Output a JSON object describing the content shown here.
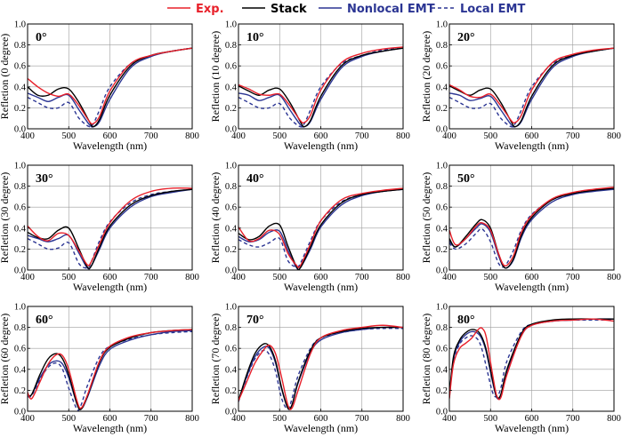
{
  "legend": [
    {
      "name": "Exp.",
      "color": "#e8202a",
      "dash": false
    },
    {
      "name": "Stack",
      "color": "#000000",
      "dash": false
    },
    {
      "name": "Nonlocal EMT",
      "color": "#2b3593",
      "dash": false
    },
    {
      "name": "Local EMT",
      "color": "#2b3593",
      "dash": true
    }
  ],
  "chart_data": {
    "type": "line",
    "xlabel": "Wavelength (nm)",
    "xlim": [
      400,
      800
    ],
    "ylim": [
      0,
      1.0
    ],
    "xticks": [
      "400",
      "500",
      "600",
      "700",
      "800"
    ],
    "yticks": [
      "0.0",
      "0.2",
      "0.4",
      "0.6",
      "0.8",
      "1.0"
    ],
    "grid": true,
    "panels": [
      {
        "angle": "0°",
        "ylabel": "Refletion (0 degree)",
        "x": [
          400,
          425,
          450,
          475,
          500,
          525,
          550,
          560,
          575,
          600,
          650,
          700,
          750,
          800
        ],
        "series": [
          {
            "name": "Exp.",
            "values": [
              0.48,
              0.4,
              0.34,
              0.31,
              0.33,
              0.22,
              0.07,
              0.05,
              0.12,
              0.36,
              0.62,
              0.7,
              0.74,
              0.77
            ]
          },
          {
            "name": "Stack",
            "values": [
              0.4,
              0.32,
              0.32,
              0.38,
              0.38,
              0.25,
              0.07,
              0.02,
              0.09,
              0.32,
              0.6,
              0.7,
              0.74,
              0.77
            ]
          },
          {
            "name": "Nonlocal EMT",
            "values": [
              0.34,
              0.3,
              0.26,
              0.3,
              0.32,
              0.18,
              0.04,
              0.02,
              0.07,
              0.28,
              0.58,
              0.69,
              0.74,
              0.77
            ]
          },
          {
            "name": "Local EMT",
            "values": [
              0.3,
              0.25,
              0.2,
              0.2,
              0.25,
              0.1,
              0.02,
              0.05,
              0.18,
              0.4,
              0.62,
              0.7,
              0.74,
              0.77
            ]
          }
        ]
      },
      {
        "angle": "10°",
        "ylabel": "Refletion (10 degree)",
        "x": [
          400,
          425,
          450,
          475,
          500,
          525,
          550,
          560,
          575,
          600,
          650,
          700,
          750,
          800
        ],
        "series": [
          {
            "name": "Exp.",
            "values": [
              0.42,
              0.38,
              0.33,
              0.32,
              0.33,
              0.22,
              0.08,
              0.06,
              0.13,
              0.37,
              0.63,
              0.72,
              0.76,
              0.78
            ]
          },
          {
            "name": "Stack",
            "values": [
              0.41,
              0.36,
              0.32,
              0.37,
              0.38,
              0.25,
              0.07,
              0.02,
              0.08,
              0.31,
              0.6,
              0.7,
              0.74,
              0.77
            ]
          },
          {
            "name": "Nonlocal EMT",
            "values": [
              0.34,
              0.32,
              0.27,
              0.3,
              0.32,
              0.18,
              0.04,
              0.02,
              0.07,
              0.28,
              0.58,
              0.69,
              0.74,
              0.77
            ]
          },
          {
            "name": "Local EMT",
            "values": [
              0.3,
              0.25,
              0.2,
              0.2,
              0.24,
              0.1,
              0.02,
              0.05,
              0.18,
              0.4,
              0.62,
              0.7,
              0.75,
              0.77
            ]
          }
        ]
      },
      {
        "angle": "20°",
        "ylabel": "Refletion (20 degree)",
        "x": [
          400,
          425,
          450,
          475,
          500,
          525,
          550,
          560,
          575,
          600,
          650,
          700,
          750,
          800
        ],
        "series": [
          {
            "name": "Exp.",
            "values": [
              0.42,
              0.37,
              0.31,
              0.3,
              0.33,
              0.22,
              0.08,
              0.06,
              0.13,
              0.37,
              0.63,
              0.71,
              0.75,
              0.77
            ]
          },
          {
            "name": "Stack",
            "values": [
              0.41,
              0.36,
              0.32,
              0.37,
              0.38,
              0.25,
              0.07,
              0.02,
              0.08,
              0.31,
              0.6,
              0.7,
              0.74,
              0.77
            ]
          },
          {
            "name": "Nonlocal EMT",
            "values": [
              0.34,
              0.32,
              0.27,
              0.29,
              0.31,
              0.18,
              0.04,
              0.02,
              0.07,
              0.28,
              0.58,
              0.69,
              0.74,
              0.77
            ]
          },
          {
            "name": "Local EMT",
            "values": [
              0.3,
              0.25,
              0.2,
              0.2,
              0.24,
              0.1,
              0.02,
              0.05,
              0.18,
              0.4,
              0.62,
              0.7,
              0.74,
              0.77
            ]
          }
        ]
      },
      {
        "angle": "30°",
        "ylabel": "Refletion (30 degree)",
        "x": [
          400,
          425,
          450,
          475,
          500,
          525,
          545,
          555,
          575,
          600,
          650,
          700,
          750,
          800
        ],
        "series": [
          {
            "name": "Exp.",
            "values": [
              0.42,
              0.32,
              0.28,
              0.35,
              0.33,
              0.18,
              0.05,
              0.08,
              0.25,
              0.45,
              0.66,
              0.75,
              0.78,
              0.78
            ]
          },
          {
            "name": "Stack",
            "values": [
              0.36,
              0.31,
              0.3,
              0.38,
              0.4,
              0.2,
              0.03,
              0.04,
              0.22,
              0.42,
              0.62,
              0.71,
              0.75,
              0.77
            ]
          },
          {
            "name": "Nonlocal EMT",
            "values": [
              0.33,
              0.3,
              0.27,
              0.3,
              0.33,
              0.16,
              0.02,
              0.04,
              0.2,
              0.4,
              0.6,
              0.7,
              0.74,
              0.77
            ]
          },
          {
            "name": "Local EMT",
            "values": [
              0.3,
              0.25,
              0.2,
              0.21,
              0.26,
              0.06,
              0.02,
              0.08,
              0.28,
              0.46,
              0.64,
              0.72,
              0.75,
              0.77
            ]
          }
        ]
      },
      {
        "angle": "40°",
        "ylabel": "Refletion (40 degree)",
        "x": [
          400,
          425,
          450,
          475,
          500,
          520,
          540,
          550,
          575,
          600,
          650,
          700,
          750,
          800
        ],
        "series": [
          {
            "name": "Exp.",
            "values": [
              0.41,
              0.28,
              0.3,
              0.38,
              0.34,
              0.16,
              0.05,
              0.04,
              0.25,
              0.47,
              0.67,
              0.73,
              0.76,
              0.78
            ]
          },
          {
            "name": "Stack",
            "values": [
              0.35,
              0.29,
              0.32,
              0.42,
              0.43,
              0.23,
              0.04,
              0.02,
              0.22,
              0.43,
              0.64,
              0.72,
              0.75,
              0.77
            ]
          },
          {
            "name": "Nonlocal EMT",
            "values": [
              0.32,
              0.27,
              0.29,
              0.36,
              0.37,
              0.19,
              0.03,
              0.02,
              0.2,
              0.41,
              0.62,
              0.71,
              0.75,
              0.77
            ]
          },
          {
            "name": "Local EMT",
            "values": [
              0.29,
              0.24,
              0.22,
              0.26,
              0.3,
              0.09,
              0.03,
              0.06,
              0.28,
              0.47,
              0.65,
              0.72,
              0.75,
              0.77
            ]
          }
        ]
      },
      {
        "angle": "50°",
        "ylabel": "Refletion (50 degree)",
        "x": [
          400,
          415,
          440,
          465,
          480,
          500,
          520,
          535,
          555,
          575,
          600,
          650,
          700,
          750,
          800
        ],
        "series": [
          {
            "name": "Exp.",
            "values": [
              0.38,
              0.24,
              0.3,
              0.42,
              0.45,
              0.38,
              0.15,
              0.04,
              0.13,
              0.36,
              0.52,
              0.68,
              0.74,
              0.77,
              0.79
            ]
          },
          {
            "name": "Stack",
            "values": [
              0.3,
              0.22,
              0.32,
              0.44,
              0.48,
              0.4,
              0.15,
              0.02,
              0.1,
              0.33,
              0.5,
              0.67,
              0.73,
              0.76,
              0.78
            ]
          },
          {
            "name": "Nonlocal EMT",
            "values": [
              0.28,
              0.22,
              0.3,
              0.4,
              0.44,
              0.36,
              0.13,
              0.02,
              0.09,
              0.31,
              0.48,
              0.65,
              0.72,
              0.75,
              0.77
            ]
          },
          {
            "name": "Local EMT",
            "values": [
              0.26,
              0.2,
              0.25,
              0.35,
              0.39,
              0.27,
              0.06,
              0.04,
              0.18,
              0.38,
              0.53,
              0.67,
              0.73,
              0.76,
              0.77
            ]
          }
        ]
      },
      {
        "angle": "60°",
        "ylabel": "Refletion (60 degree)",
        "x": [
          400,
          410,
          430,
          450,
          470,
          485,
          500,
          520,
          530,
          545,
          575,
          600,
          650,
          700,
          750,
          800
        ],
        "series": [
          {
            "name": "Exp.",
            "values": [
              0.18,
              0.12,
              0.28,
              0.45,
              0.54,
              0.53,
              0.4,
              0.1,
              0.03,
              0.15,
              0.48,
              0.62,
              0.71,
              0.75,
              0.77,
              0.78
            ]
          },
          {
            "name": "Stack",
            "values": [
              0.16,
              0.16,
              0.35,
              0.5,
              0.55,
              0.5,
              0.35,
              0.07,
              0.02,
              0.14,
              0.47,
              0.61,
              0.7,
              0.75,
              0.77,
              0.78
            ]
          },
          {
            "name": "Nonlocal EMT",
            "values": [
              0.15,
              0.16,
              0.32,
              0.44,
              0.48,
              0.45,
              0.32,
              0.07,
              0.02,
              0.13,
              0.44,
              0.59,
              0.68,
              0.73,
              0.76,
              0.77
            ]
          },
          {
            "name": "Local EMT",
            "values": [
              0.14,
              0.15,
              0.3,
              0.42,
              0.46,
              0.4,
              0.22,
              0.02,
              0.06,
              0.24,
              0.52,
              0.62,
              0.69,
              0.73,
              0.75,
              0.76
            ]
          }
        ]
      },
      {
        "angle": "70°",
        "ylabel": "Refletion (70 degree)",
        "x": [
          400,
          420,
          440,
          460,
          475,
          490,
          505,
          520,
          530,
          545,
          575,
          600,
          650,
          700,
          750,
          800
        ],
        "series": [
          {
            "name": "Exp.",
            "values": [
              0.1,
              0.28,
              0.46,
              0.58,
              0.63,
              0.55,
              0.32,
              0.06,
              0.03,
              0.2,
              0.55,
              0.7,
              0.77,
              0.8,
              0.82,
              0.8
            ]
          },
          {
            "name": "Stack",
            "values": [
              0.1,
              0.35,
              0.55,
              0.64,
              0.62,
              0.48,
              0.22,
              0.03,
              0.06,
              0.28,
              0.58,
              0.7,
              0.76,
              0.79,
              0.8,
              0.8
            ]
          },
          {
            "name": "Nonlocal EMT",
            "values": [
              0.1,
              0.33,
              0.52,
              0.61,
              0.6,
              0.46,
              0.21,
              0.03,
              0.06,
              0.27,
              0.56,
              0.68,
              0.75,
              0.78,
              0.8,
              0.8
            ]
          },
          {
            "name": "Local EMT",
            "values": [
              0.09,
              0.32,
              0.5,
              0.58,
              0.54,
              0.38,
              0.12,
              0.02,
              0.12,
              0.34,
              0.6,
              0.7,
              0.75,
              0.78,
              0.79,
              0.79
            ]
          }
        ]
      },
      {
        "angle": "80°",
        "ylabel": "Refletion (80 degree)",
        "x": [
          400,
          410,
          425,
          440,
          455,
          470,
          480,
          490,
          505,
          515,
          525,
          540,
          575,
          600,
          650,
          700,
          750,
          800
        ],
        "series": [
          {
            "name": "Exp.",
            "values": [
              0.12,
              0.45,
              0.6,
              0.65,
              0.7,
              0.78,
              0.79,
              0.7,
              0.35,
              0.15,
              0.13,
              0.35,
              0.72,
              0.82,
              0.86,
              0.87,
              0.88,
              0.86
            ]
          },
          {
            "name": "Stack",
            "values": [
              0.15,
              0.52,
              0.68,
              0.75,
              0.78,
              0.76,
              0.7,
              0.58,
              0.3,
              0.14,
              0.16,
              0.4,
              0.74,
              0.83,
              0.87,
              0.88,
              0.88,
              0.88
            ]
          },
          {
            "name": "Nonlocal EMT",
            "values": [
              0.14,
              0.5,
              0.66,
              0.73,
              0.76,
              0.74,
              0.68,
              0.56,
              0.28,
              0.13,
              0.15,
              0.38,
              0.72,
              0.82,
              0.86,
              0.87,
              0.88,
              0.88
            ]
          },
          {
            "name": "Local EMT",
            "values": [
              0.13,
              0.48,
              0.64,
              0.7,
              0.72,
              0.68,
              0.58,
              0.42,
              0.18,
              0.14,
              0.22,
              0.48,
              0.76,
              0.83,
              0.86,
              0.87,
              0.87,
              0.87
            ]
          }
        ]
      }
    ]
  }
}
